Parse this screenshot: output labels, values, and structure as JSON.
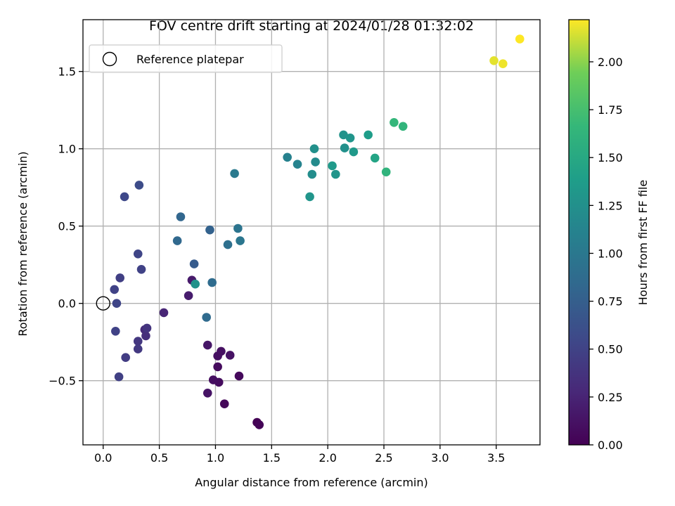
{
  "chart_data": {
    "type": "scatter",
    "title": "FOV centre drift starting at 2024/01/28 01:32:02",
    "xlabel": "Angular distance from reference (arcmin)",
    "ylabel": "Rotation from reference (arcmin)",
    "xlim": [
      -0.18,
      3.89
    ],
    "ylim": [
      -0.915,
      1.835
    ],
    "xticks": [
      0.0,
      0.5,
      1.0,
      1.5,
      2.0,
      2.5,
      3.0,
      3.5
    ],
    "xtick_labels": [
      "0.0",
      "0.5",
      "1.0",
      "1.5",
      "2.0",
      "2.5",
      "3.0",
      "3.5"
    ],
    "yticks": [
      -0.5,
      0.0,
      0.5,
      1.0,
      1.5
    ],
    "ytick_labels": [
      "−0.5",
      "0.0",
      "0.5",
      "1.0",
      "1.5"
    ],
    "grid": true,
    "legend": {
      "placement": "top-left",
      "entries": [
        "Reference platepar"
      ]
    },
    "reference_point": {
      "x": 0.0,
      "y": 0.0
    },
    "colorbar": {
      "label": "Hours from first FF file",
      "colormap": "viridis",
      "range": [
        0.0,
        2.22
      ],
      "ticks": [
        0.0,
        0.25,
        0.5,
        0.75,
        1.0,
        1.25,
        1.5,
        1.75,
        2.0
      ],
      "tick_labels": [
        "0.00",
        "0.25",
        "0.50",
        "0.75",
        "1.00",
        "1.25",
        "1.50",
        "1.75",
        "2.00"
      ]
    },
    "points": [
      {
        "x": 1.37,
        "y": -0.77,
        "c": 0.0
      },
      {
        "x": 1.39,
        "y": -0.785,
        "c": 0.02
      },
      {
        "x": 1.08,
        "y": -0.65,
        "c": 0.04
      },
      {
        "x": 1.21,
        "y": -0.47,
        "c": 0.06
      },
      {
        "x": 1.02,
        "y": -0.41,
        "c": 0.07
      },
      {
        "x": 1.03,
        "y": -0.51,
        "c": 0.08
      },
      {
        "x": 0.98,
        "y": -0.495,
        "c": 0.09
      },
      {
        "x": 1.02,
        "y": -0.34,
        "c": 0.1
      },
      {
        "x": 1.05,
        "y": -0.31,
        "c": 0.11
      },
      {
        "x": 1.13,
        "y": -0.335,
        "c": 0.12
      },
      {
        "x": 0.93,
        "y": -0.58,
        "c": 0.13
      },
      {
        "x": 0.93,
        "y": -0.27,
        "c": 0.15
      },
      {
        "x": 0.79,
        "y": 0.15,
        "c": 0.18
      },
      {
        "x": 0.76,
        "y": 0.05,
        "c": 0.19
      },
      {
        "x": 0.54,
        "y": -0.06,
        "c": 0.26
      },
      {
        "x": 0.37,
        "y": -0.17,
        "c": 0.3
      },
      {
        "x": 0.38,
        "y": -0.21,
        "c": 0.33
      },
      {
        "x": 0.39,
        "y": -0.16,
        "c": 0.38
      },
      {
        "x": 0.31,
        "y": -0.245,
        "c": 0.4
      },
      {
        "x": 0.31,
        "y": -0.295,
        "c": 0.42
      },
      {
        "x": 0.2,
        "y": -0.35,
        "c": 0.45
      },
      {
        "x": 0.14,
        "y": -0.475,
        "c": 0.48
      },
      {
        "x": 0.11,
        "y": -0.18,
        "c": 0.5
      },
      {
        "x": 0.12,
        "y": 0.0,
        "c": 0.52
      },
      {
        "x": 0.1,
        "y": 0.09,
        "c": 0.5
      },
      {
        "x": 0.15,
        "y": 0.165,
        "c": 0.47
      },
      {
        "x": 0.34,
        "y": 0.22,
        "c": 0.5
      },
      {
        "x": 0.31,
        "y": 0.32,
        "c": 0.52
      },
      {
        "x": 0.19,
        "y": 0.69,
        "c": 0.55
      },
      {
        "x": 0.32,
        "y": 0.765,
        "c": 0.58
      },
      {
        "x": 0.69,
        "y": 0.56,
        "c": 0.82
      },
      {
        "x": 0.66,
        "y": 0.405,
        "c": 0.84
      },
      {
        "x": 0.81,
        "y": 0.255,
        "c": 0.72
      },
      {
        "x": 0.95,
        "y": 0.475,
        "c": 0.78
      },
      {
        "x": 0.92,
        "y": -0.09,
        "c": 0.86
      },
      {
        "x": 0.97,
        "y": 0.135,
        "c": 0.88
      },
      {
        "x": 0.82,
        "y": 0.125,
        "c": 1.27
      },
      {
        "x": 1.11,
        "y": 0.38,
        "c": 0.92
      },
      {
        "x": 1.2,
        "y": 0.485,
        "c": 0.96
      },
      {
        "x": 1.22,
        "y": 0.405,
        "c": 0.98
      },
      {
        "x": 1.17,
        "y": 0.84,
        "c": 1.02
      },
      {
        "x": 1.64,
        "y": 0.945,
        "c": 1.1
      },
      {
        "x": 1.73,
        "y": 0.9,
        "c": 1.12
      },
      {
        "x": 1.84,
        "y": 0.69,
        "c": 1.3
      },
      {
        "x": 1.86,
        "y": 0.835,
        "c": 1.22
      },
      {
        "x": 1.89,
        "y": 0.915,
        "c": 1.2
      },
      {
        "x": 1.88,
        "y": 1.0,
        "c": 1.25
      },
      {
        "x": 2.04,
        "y": 0.89,
        "c": 1.35
      },
      {
        "x": 2.07,
        "y": 0.835,
        "c": 1.3
      },
      {
        "x": 2.14,
        "y": 1.09,
        "c": 1.28
      },
      {
        "x": 2.15,
        "y": 1.005,
        "c": 1.25
      },
      {
        "x": 2.2,
        "y": 1.07,
        "c": 1.3
      },
      {
        "x": 2.23,
        "y": 0.98,
        "c": 1.34
      },
      {
        "x": 2.36,
        "y": 1.09,
        "c": 1.38
      },
      {
        "x": 2.42,
        "y": 0.94,
        "c": 1.45
      },
      {
        "x": 2.52,
        "y": 0.85,
        "c": 1.62
      },
      {
        "x": 2.59,
        "y": 1.17,
        "c": 1.65
      },
      {
        "x": 2.67,
        "y": 1.145,
        "c": 1.63
      },
      {
        "x": 3.48,
        "y": 1.57,
        "c": 2.17
      },
      {
        "x": 3.56,
        "y": 1.55,
        "c": 2.19
      },
      {
        "x": 3.71,
        "y": 1.71,
        "c": 2.22
      }
    ]
  }
}
